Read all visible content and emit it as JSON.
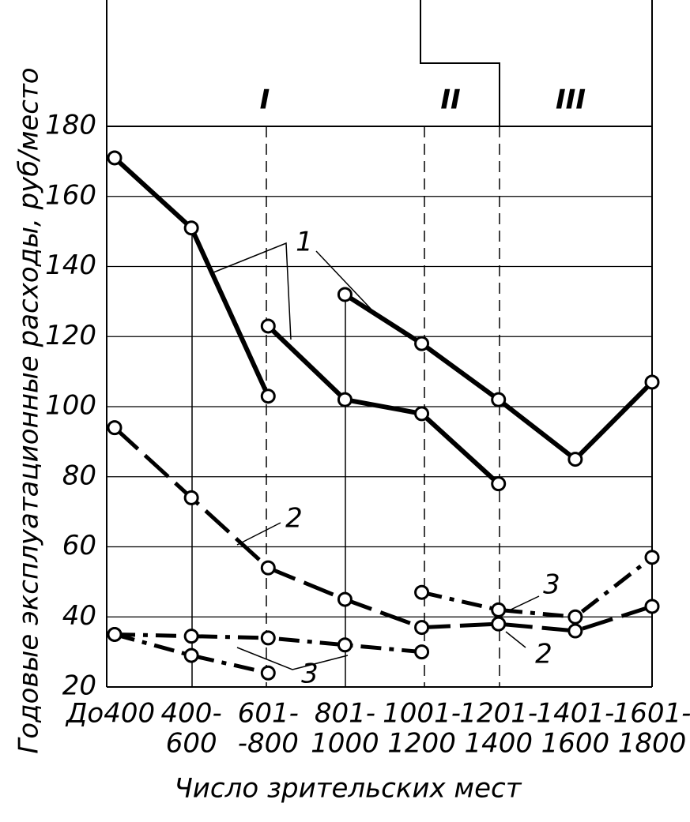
{
  "chart_data": {
    "type": "line",
    "y_label": "Годовые эксплуатационные расходы, руб/место",
    "x_label": "Число зрительских мест",
    "zones": [
      "I",
      "II",
      "III"
    ],
    "categories": [
      [
        "До400"
      ],
      [
        "400-",
        "600"
      ],
      [
        "601-",
        "-800"
      ],
      [
        "801-",
        "1000"
      ],
      [
        "1001-",
        "1200"
      ],
      [
        "1201-",
        "1400"
      ],
      [
        "1401-",
        "1600"
      ],
      [
        "1601-",
        "1800"
      ]
    ],
    "ylim": [
      20,
      180
    ],
    "yticks": [
      20,
      40,
      60,
      80,
      100,
      120,
      140,
      160,
      180
    ],
    "grid": true,
    "series": [
      {
        "color": "#000000",
        "style": "solid",
        "values": [
          171,
          151,
          103,
          null,
          null,
          null,
          null,
          null
        ]
      },
      {
        "color": "#000000",
        "style": "solid",
        "values": [
          null,
          null,
          123,
          102,
          98,
          78,
          null,
          null
        ]
      },
      {
        "color": "#000000",
        "style": "solid",
        "values": [
          null,
          null,
          null,
          132,
          118,
          102,
          85,
          107
        ]
      },
      {
        "color": "#000000",
        "style": "dashed",
        "values": [
          94,
          74,
          54,
          45,
          37,
          38,
          36,
          43
        ]
      },
      {
        "color": "#000000",
        "style": "dashdot",
        "values": [
          null,
          null,
          null,
          null,
          47,
          42,
          40,
          57
        ]
      },
      {
        "color": "#000000",
        "style": "dashdot",
        "values": [
          35,
          34.5,
          34,
          32,
          30,
          null,
          null,
          null
        ]
      },
      {
        "color": "#000000",
        "style": "dashdot",
        "values": [
          35,
          29,
          24,
          null,
          null,
          null,
          null,
          null
        ]
      }
    ],
    "annotations": [
      "1",
      "2",
      "2",
      "3",
      "3"
    ]
  }
}
